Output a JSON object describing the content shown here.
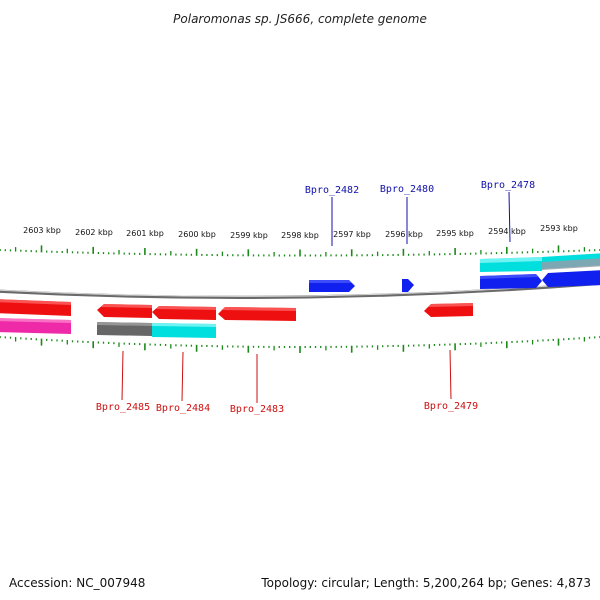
{
  "title": "Polaromonas sp. JS666, complete genome",
  "footer": {
    "accession": "Accession: NC_007948",
    "summary": "Topology: circular; Length: 5,200,264 bp; Genes: 4,873"
  },
  "colors": {
    "tick": "#1a8a1a",
    "backbone": "#8a8a8a",
    "forward_label": "#1010aa",
    "reverse_label": "#cc1010",
    "blue": "#1020ee",
    "cyan": "#00dede",
    "red": "#ee1010",
    "magenta": "#ee2aa8",
    "gray": "#666666"
  },
  "scale": {
    "labels": [
      "2603 kbp",
      "2602 kbp",
      "2601 kbp",
      "2600 kbp",
      "2599 kbp",
      "2598 kbp",
      "2597 kbp",
      "2596 kbp",
      "2595 kbp",
      "2594 kbp",
      "2593 kbp"
    ]
  },
  "gene_labels": {
    "forward": [
      "Bpro_2482",
      "Bpro_2480",
      "Bpro_2478"
    ],
    "reverse": [
      "Bpro_2485",
      "Bpro_2484",
      "Bpro_2483",
      "Bpro_2479"
    ]
  }
}
